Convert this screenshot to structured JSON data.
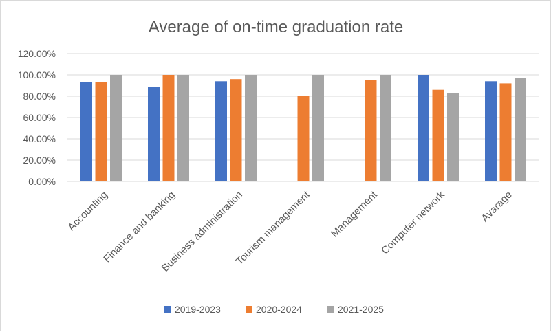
{
  "chart_data": {
    "type": "bar",
    "title": "Average of on-time graduation rate",
    "xlabel": "",
    "ylabel": "",
    "ylim": [
      0,
      1.2
    ],
    "yticks": [
      0,
      0.2,
      0.4,
      0.6,
      0.8,
      1.0,
      1.2
    ],
    "ytick_labels": [
      "0.00%",
      "20.00%",
      "40.00%",
      "60.00%",
      "80.00%",
      "100.00%",
      "120.00%"
    ],
    "grid": true,
    "legend_position": "bottom",
    "categories": [
      "Accounting",
      "Finance and banking",
      "Business administration",
      "Tourism management",
      "Management",
      "Computer network",
      "Avarage"
    ],
    "series": [
      {
        "name": "2019-2023",
        "color": "#4472C4",
        "values": [
          0.935,
          0.89,
          0.94,
          null,
          null,
          1.0,
          0.94
        ]
      },
      {
        "name": "2020-2024",
        "color": "#ED7D31",
        "values": [
          0.93,
          1.0,
          0.96,
          0.8,
          0.95,
          0.86,
          0.92
        ]
      },
      {
        "name": "2021-2025",
        "color": "#A5A5A5",
        "values": [
          1.0,
          1.0,
          1.0,
          1.0,
          1.0,
          0.83,
          0.97
        ]
      }
    ]
  }
}
